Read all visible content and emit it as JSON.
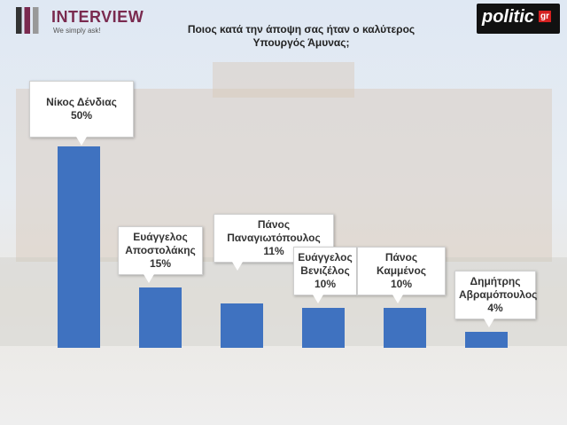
{
  "header": {
    "brand": "INTERVIEW",
    "tagline": "We simply ask!",
    "partner": "politic",
    "partner_suffix": "gr"
  },
  "chart_data": {
    "type": "bar",
    "title": "Ποιος κατά την άποψη σας ήταν ο καλύτερος Υπουργός Άμυνας;",
    "categories": [
      "Νίκος Δένδιας",
      "Ευάγγελος Αποστολάκης",
      "Πάνος Παναγιωτόπουλος",
      "Ευάγγελος Βενιζέλος",
      "Πάνος Καμμένος",
      "Δημήτρης Αβραμόπουλος"
    ],
    "values": [
      50,
      15,
      11,
      10,
      10,
      4
    ],
    "value_labels": [
      "50%",
      "15%",
      "11%",
      "10%",
      "10%",
      "4%"
    ],
    "color": "#3f72c0"
  }
}
